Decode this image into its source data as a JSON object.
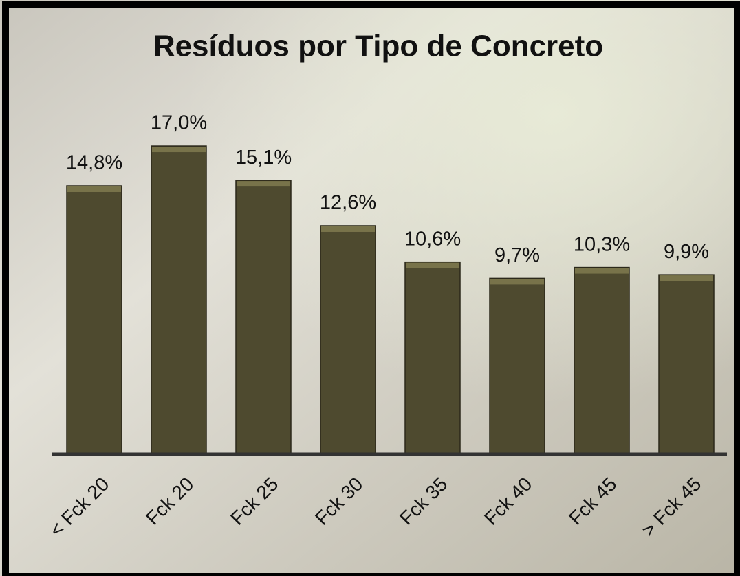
{
  "chart_data": {
    "type": "bar",
    "title": "Resíduos por Tipo de Concreto",
    "categories": [
      "< Fck 20",
      "Fck 20",
      "Fck 25",
      "Fck 30",
      "Fck 35",
      "Fck 40",
      "Fck 45",
      "> Fck 45"
    ],
    "values": [
      14.8,
      17.0,
      15.1,
      12.6,
      10.6,
      9.7,
      10.3,
      9.9
    ],
    "value_labels": [
      "14,8%",
      "17,0%",
      "15,1%",
      "12,6%",
      "10,6%",
      "9,7%",
      "10,3%",
      "9,9%"
    ],
    "color": "#4e4a2f"
  }
}
